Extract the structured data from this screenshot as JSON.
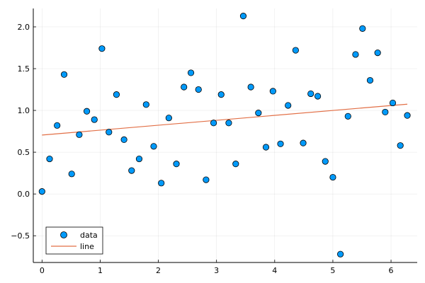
{
  "chart_data": {
    "type": "scatter",
    "title": "",
    "xlabel": "",
    "ylabel": "",
    "xlim": [
      -0.15,
      6.45
    ],
    "ylim": [
      -0.82,
      2.22
    ],
    "xticks": [
      0,
      1,
      2,
      3,
      4,
      5,
      6
    ],
    "yticks": [
      -0.5,
      0.0,
      0.5,
      1.0,
      1.5,
      2.0
    ],
    "xtick_labels": [
      "0",
      "1",
      "2",
      "3",
      "4",
      "5",
      "6"
    ],
    "ytick_labels": [
      "−0.5",
      "0.0",
      "0.5",
      "1.0",
      "1.5",
      "2.0"
    ],
    "grid": true,
    "legend_position": "bottom-left",
    "series": [
      {
        "name": "data",
        "kind": "scatter",
        "color": "#009AFA",
        "x": [
          0.0,
          0.13,
          0.26,
          0.38,
          0.51,
          0.64,
          0.77,
          0.9,
          1.03,
          1.15,
          1.28,
          1.41,
          1.54,
          1.67,
          1.79,
          1.92,
          2.05,
          2.18,
          2.31,
          2.44,
          2.56,
          2.69,
          2.82,
          2.95,
          3.08,
          3.21,
          3.33,
          3.46,
          3.59,
          3.72,
          3.85,
          3.97,
          4.1,
          4.23,
          4.36,
          4.49,
          4.62,
          4.74,
          4.87,
          5.0,
          5.13,
          5.26,
          5.39,
          5.51,
          5.64,
          5.77,
          5.9,
          6.03,
          6.16,
          6.28
        ],
        "y": [
          0.03,
          0.42,
          0.82,
          1.43,
          0.24,
          0.71,
          0.99,
          0.89,
          1.74,
          0.74,
          1.19,
          0.65,
          0.28,
          0.42,
          1.07,
          0.57,
          0.13,
          0.91,
          0.36,
          1.28,
          1.45,
          1.25,
          0.17,
          0.85,
          1.19,
          0.85,
          0.36,
          2.13,
          1.28,
          0.97,
          0.56,
          1.23,
          0.6,
          1.06,
          1.72,
          0.61,
          1.2,
          1.17,
          0.39,
          0.2,
          -0.72,
          0.93,
          1.67,
          1.98,
          1.36,
          1.69,
          0.98,
          1.09,
          0.58,
          0.94
        ]
      },
      {
        "name": "line",
        "kind": "line",
        "color": "#E26F46",
        "x": [
          0.0,
          6.28
        ],
        "y": [
          0.705,
          1.075
        ]
      }
    ]
  }
}
